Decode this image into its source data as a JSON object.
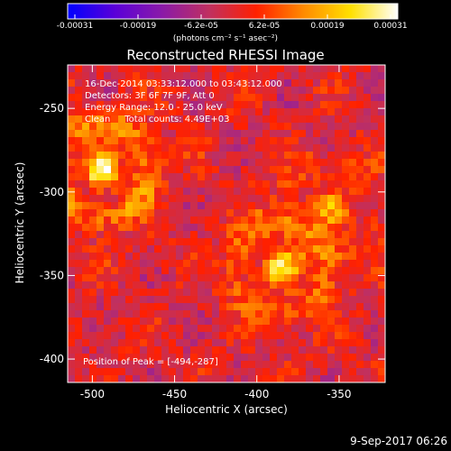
{
  "colorbar": {
    "ticks": [
      "-0.00031",
      "-0.00019",
      "-6.2e-05",
      "6.2e-05",
      "0.00019",
      "0.00031"
    ],
    "unit_label": "(photons cm⁻² s⁻¹ asec⁻²)",
    "colors": [
      "#0000ff",
      "#5a00d8",
      "#8a1aa8",
      "#c03060",
      "#ff2000",
      "#ff8a00",
      "#ffe000",
      "#ffffff"
    ]
  },
  "chart_data": {
    "type": "heatmap",
    "title": "Reconstructed RHESSI Image",
    "xlabel": "Heliocentric X (arcsec)",
    "ylabel": "Heliocentric Y (arcsec)",
    "xlim": [
      -515,
      -322
    ],
    "ylim": [
      -414,
      -224
    ],
    "xticks": [
      -500,
      -450,
      -400,
      -350
    ],
    "yticks": [
      -250,
      -300,
      -350,
      -400
    ],
    "value_range": [
      -0.00031,
      0.00031
    ],
    "sources": [
      {
        "x": -494,
        "y": -287,
        "peak": 0.00031
      },
      {
        "x": -385,
        "y": -345,
        "peak": 0.00024
      },
      {
        "x": -355,
        "y": -310,
        "peak": 0.00014
      }
    ]
  },
  "annotations": {
    "time": "16-Dec-2014 03:33:12.000 to 03:43:12.000",
    "detectors": "Detectors: 3F 6F 7F 9F, Att 0",
    "energy": "Energy Range: 12.0 - 25.0 keV",
    "clean": "Clean     Total counts: 4.49E+03",
    "peak": "Position of Peak = [-494,-287]"
  },
  "footer": "9-Sep-2017 06:26"
}
